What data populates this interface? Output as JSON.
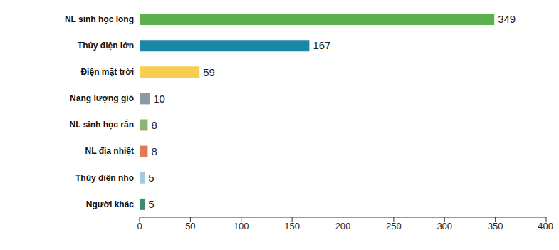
{
  "chart_data": {
    "type": "bar",
    "orientation": "horizontal",
    "categories": [
      "NL sinh học lỏng",
      "Thủy điện lớn",
      "Điện mặt trời",
      "Năng lượng gió",
      "NL sinh học rắn",
      "NL địa nhiệt",
      "Thủy điện nhỏ",
      "Người khác"
    ],
    "values": [
      349,
      167,
      59,
      10,
      8,
      8,
      5,
      5
    ],
    "colors": [
      "#5DB04F",
      "#1A86A8",
      "#F5CE52",
      "#8A9BA8",
      "#8DB573",
      "#E07A55",
      "#A6C8E0",
      "#3C8C6A"
    ],
    "xlim": [
      0,
      400
    ],
    "xticks": [
      0,
      50,
      100,
      150,
      200,
      250,
      300,
      350,
      400
    ],
    "data_labels": true,
    "grid": false
  }
}
